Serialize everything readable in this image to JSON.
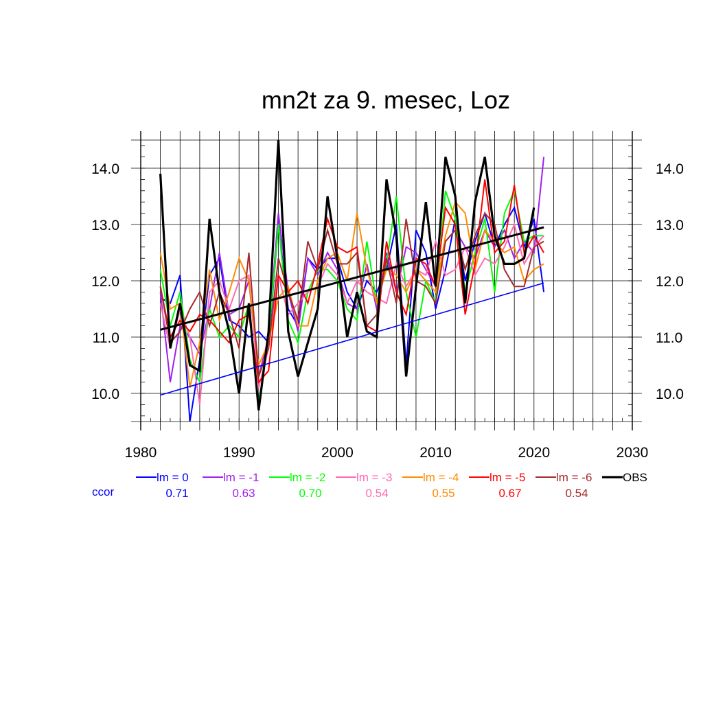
{
  "chart_data": {
    "type": "line",
    "title": "mn2t za 9. mesec, Loz",
    "xlim": [
      1980,
      2030
    ],
    "ylim": [
      9.5,
      14.5
    ],
    "x_ticks": [
      "1980",
      "1990",
      "2000",
      "2010",
      "2020",
      "2030"
    ],
    "y_ticks": [
      "10.0",
      "11.0",
      "12.0",
      "13.0",
      "14.0"
    ],
    "grid": true,
    "legend_placement": "bottom",
    "x": [
      1982,
      1983,
      1984,
      1985,
      1986,
      1987,
      1988,
      1989,
      1990,
      1991,
      1992,
      1993,
      1994,
      1995,
      1996,
      1997,
      1998,
      1999,
      2000,
      2001,
      2002,
      2003,
      2004,
      2005,
      2006,
      2007,
      2008,
      2009,
      2010,
      2011,
      2012,
      2013,
      2014,
      2015,
      2016,
      2017,
      2018,
      2019,
      2020,
      2021
    ],
    "series": [
      {
        "name": "lm = 0",
        "color": "#0000ff",
        "ccor": "0.71",
        "width": 2,
        "values": [
          11.7,
          11.6,
          12.1,
          9.5,
          10.6,
          12.1,
          12.4,
          11.3,
          11.2,
          11.0,
          11.1,
          10.9,
          13.0,
          11.5,
          11.2,
          12.4,
          12.2,
          12.4,
          12.4,
          11.8,
          11.5,
          12.0,
          11.8,
          12.2,
          13.0,
          10.5,
          12.9,
          12.5,
          11.5,
          12.2,
          13.1,
          12.0,
          12.7,
          13.2,
          12.6,
          13.0,
          13.3,
          12.6,
          13.1,
          11.8
        ]
      },
      {
        "name": "lm = -1",
        "color": "#a020f0",
        "ccor": "0.63",
        "width": 2,
        "values": [
          11.8,
          10.2,
          11.2,
          11.0,
          10.7,
          11.5,
          12.5,
          11.4,
          11.5,
          12.0,
          10.3,
          11.0,
          13.2,
          11.8,
          11.1,
          12.4,
          12.1,
          12.5,
          12.2,
          11.6,
          11.5,
          12.3,
          11.5,
          12.5,
          11.8,
          12.6,
          12.5,
          12.2,
          11.9,
          12.7,
          12.9,
          12.6,
          12.4,
          12.9,
          12.6,
          12.9,
          12.4,
          12.7,
          12.5,
          14.2
        ]
      },
      {
        "name": "lm = -2",
        "color": "#00ff00",
        "ccor": "0.70",
        "width": 2,
        "values": [
          12.2,
          11.2,
          11.8,
          10.6,
          10.2,
          11.5,
          11.0,
          11.2,
          11.0,
          11.6,
          9.8,
          11.0,
          13.0,
          11.3,
          10.9,
          11.8,
          12.2,
          12.2,
          12.0,
          11.5,
          11.3,
          12.7,
          11.6,
          12.3,
          13.5,
          11.8,
          11.0,
          12.0,
          11.6,
          13.6,
          13.1,
          11.8,
          12.5,
          13.1,
          11.8,
          13.2,
          13.6,
          12.7,
          12.8,
          12.8
        ]
      },
      {
        "name": "lm = -3",
        "color": "#ff69b4",
        "ccor": "0.54",
        "width": 2,
        "values": [
          11.6,
          10.8,
          11.5,
          11.0,
          9.8,
          11.8,
          12.0,
          11.5,
          12.0,
          12.1,
          10.1,
          10.8,
          12.1,
          11.4,
          11.6,
          11.8,
          11.9,
          12.3,
          12.1,
          11.6,
          12.0,
          11.8,
          11.7,
          11.6,
          12.3,
          11.9,
          12.2,
          12.1,
          12.7,
          12.1,
          12.2,
          12.6,
          12.1,
          12.4,
          12.3,
          12.6,
          13.0,
          12.3,
          12.6,
          12.8
        ]
      },
      {
        "name": "lm = -4",
        "color": "#ff8c00",
        "ccor": "0.55",
        "width": 2,
        "values": [
          12.5,
          11.5,
          11.6,
          10.1,
          10.9,
          12.2,
          11.3,
          11.8,
          12.4,
          12.0,
          10.5,
          10.9,
          11.7,
          11.9,
          11.2,
          11.2,
          12.0,
          12.4,
          12.5,
          12.0,
          13.2,
          12.2,
          11.6,
          12.2,
          12.1,
          11.8,
          12.2,
          12.0,
          11.8,
          12.8,
          13.4,
          13.2,
          12.2,
          12.9,
          12.7,
          12.5,
          12.6,
          12.0,
          12.2,
          12.3
        ]
      },
      {
        "name": "lm = -5",
        "color": "#ff0000",
        "ccor": "0.67",
        "width": 2,
        "values": [
          11.9,
          11.0,
          11.3,
          11.1,
          11.4,
          11.3,
          11.1,
          10.9,
          11.3,
          11.4,
          10.2,
          10.4,
          12.1,
          11.8,
          12.0,
          11.6,
          12.3,
          13.1,
          12.6,
          12.5,
          12.6,
          11.2,
          11.1,
          12.7,
          11.8,
          11.4,
          12.4,
          12.3,
          11.9,
          13.3,
          13.0,
          11.4,
          12.3,
          13.8,
          12.5,
          12.7,
          13.7,
          12.5,
          12.8,
          12.5
        ]
      },
      {
        "name": "lm = -6",
        "color": "#a52a2a",
        "ccor": "0.54",
        "width": 2,
        "values": [
          11.9,
          10.9,
          11.1,
          11.5,
          11.8,
          11.2,
          11.8,
          11.4,
          10.8,
          12.5,
          10.3,
          10.8,
          12.4,
          11.8,
          11.3,
          12.7,
          12.2,
          12.9,
          12.3,
          12.3,
          12.5,
          11.2,
          11.4,
          12.4,
          11.6,
          13.1,
          12.0,
          11.9,
          11.6,
          12.7,
          12.9,
          12.2,
          12.8,
          13.2,
          13.0,
          12.2,
          11.9,
          11.9,
          12.6,
          12.7
        ]
      },
      {
        "name": "OBS",
        "color": "#000000",
        "ccor": "",
        "width": 3.2,
        "values": [
          13.9,
          10.8,
          11.6,
          10.5,
          10.4,
          13.1,
          11.8,
          11.1,
          10.0,
          11.6,
          9.7,
          11.1,
          14.5,
          11.1,
          10.3,
          10.9,
          11.5,
          13.5,
          12.4,
          11.0,
          11.8,
          11.1,
          11.0,
          13.8,
          12.8,
          10.3,
          11.9,
          13.4,
          11.9,
          14.2,
          13.5,
          11.6,
          13.4,
          14.2,
          12.8,
          12.3,
          12.3,
          12.4,
          13.3,
          null
        ]
      }
    ],
    "trend_lines": [
      {
        "name": "OBS trend",
        "color": "#000000",
        "width": 3,
        "x": [
          1982,
          2021
        ],
        "y": [
          11.13,
          12.95
        ]
      },
      {
        "name": "lm = 0 trend",
        "color": "#0000ff",
        "width": 1.6,
        "x": [
          1982,
          2021
        ],
        "y": [
          9.97,
          11.96
        ]
      }
    ],
    "ccor_label": "ccor"
  }
}
